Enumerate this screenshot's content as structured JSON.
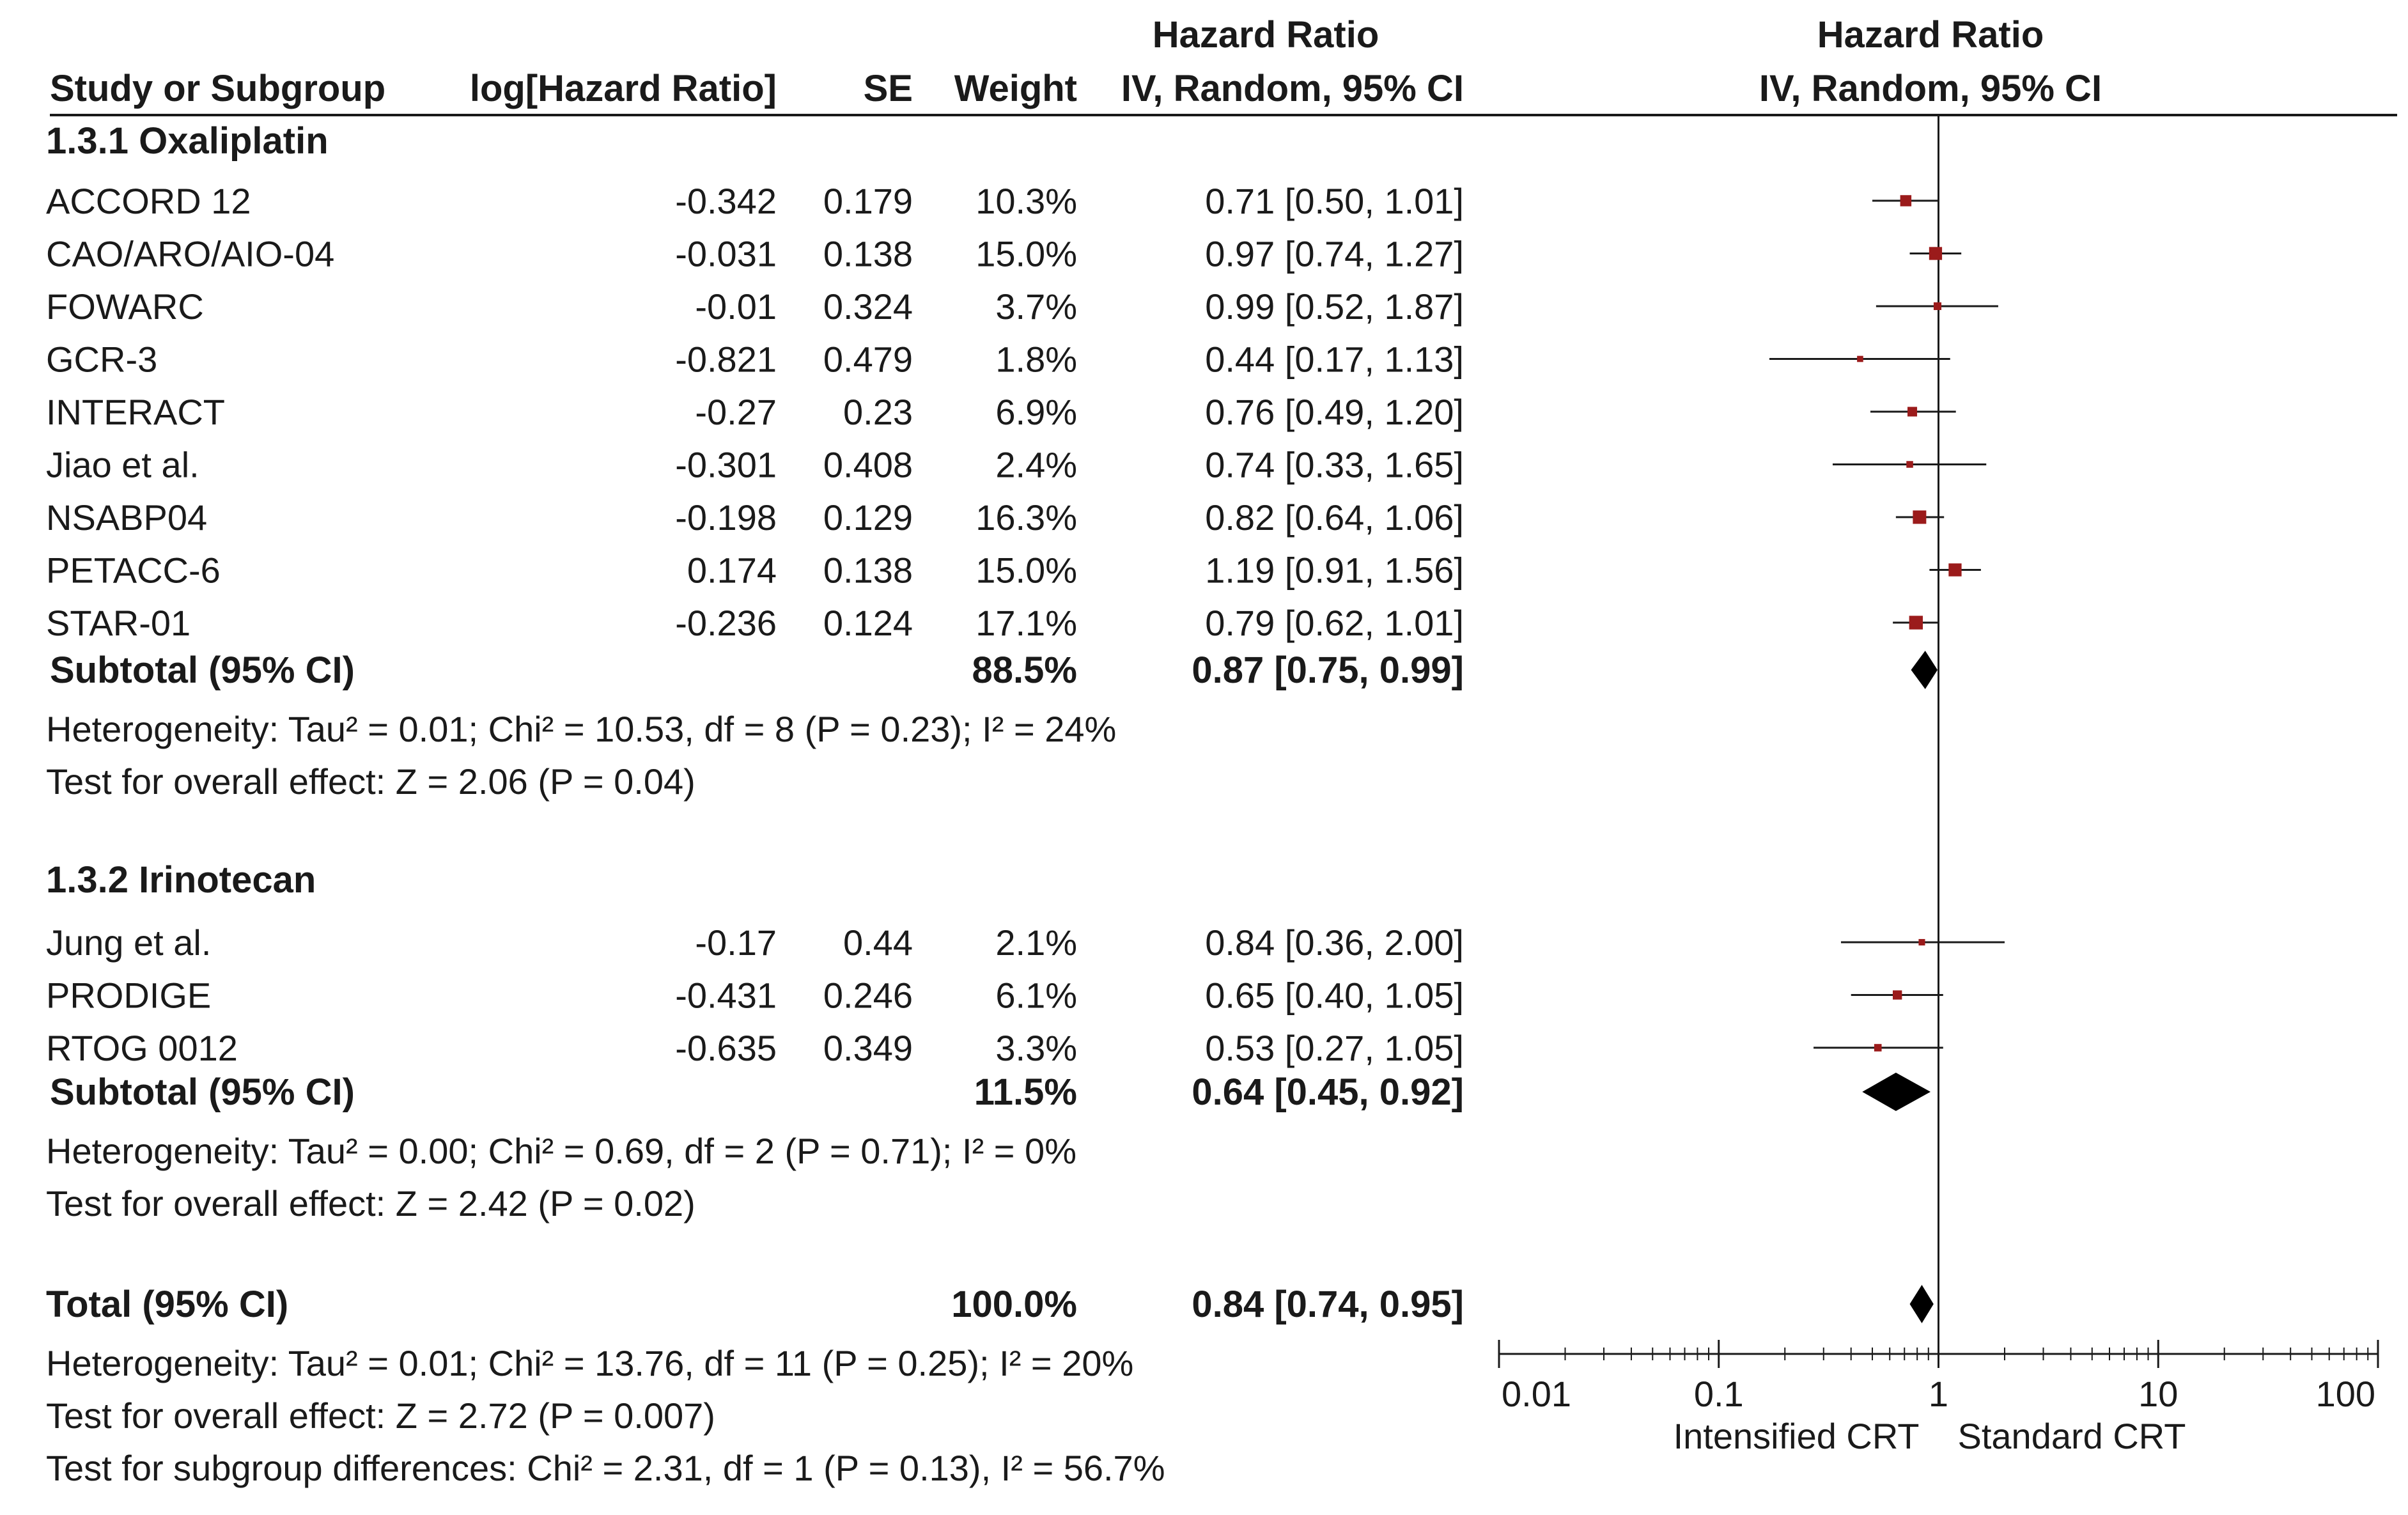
{
  "chart_data": {
    "type": "forest",
    "header": {
      "col_study": "Study or Subgroup",
      "col_loghr": "log[Hazard Ratio]",
      "col_se": "SE",
      "col_weight": "Weight",
      "col_hr_title": "Hazard Ratio",
      "col_hr_method": "IV, Random, 95% CI",
      "plot_title": "Hazard Ratio",
      "plot_method": "IV, Random, 95% CI"
    },
    "subgroups": [
      {
        "title": "1.3.1 Oxaliplatin",
        "studies": [
          {
            "name": "ACCORD 12",
            "loghr": "-0.342",
            "se": "0.179",
            "weight": "10.3%",
            "ci_text": "0.71 [0.50, 1.01]",
            "hr": 0.71,
            "lo": 0.5,
            "hi": 1.01,
            "w": 10.3
          },
          {
            "name": "CAO/ARO/AIO-04",
            "loghr": "-0.031",
            "se": "0.138",
            "weight": "15.0%",
            "ci_text": "0.97 [0.74, 1.27]",
            "hr": 0.97,
            "lo": 0.74,
            "hi": 1.27,
            "w": 15.0
          },
          {
            "name": "FOWARC",
            "loghr": "-0.01",
            "se": "0.324",
            "weight": "3.7%",
            "ci_text": "0.99 [0.52, 1.87]",
            "hr": 0.99,
            "lo": 0.52,
            "hi": 1.87,
            "w": 3.7
          },
          {
            "name": "GCR-3",
            "loghr": "-0.821",
            "se": "0.479",
            "weight": "1.8%",
            "ci_text": "0.44 [0.17, 1.13]",
            "hr": 0.44,
            "lo": 0.17,
            "hi": 1.13,
            "w": 1.8
          },
          {
            "name": "INTERACT",
            "loghr": "-0.27",
            "se": "0.23",
            "weight": "6.9%",
            "ci_text": "0.76 [0.49, 1.20]",
            "hr": 0.76,
            "lo": 0.49,
            "hi": 1.2,
            "w": 6.9
          },
          {
            "name": "Jiao et al.",
            "loghr": "-0.301",
            "se": "0.408",
            "weight": "2.4%",
            "ci_text": "0.74 [0.33, 1.65]",
            "hr": 0.74,
            "lo": 0.33,
            "hi": 1.65,
            "w": 2.4
          },
          {
            "name": "NSABP04",
            "loghr": "-0.198",
            "se": "0.129",
            "weight": "16.3%",
            "ci_text": "0.82 [0.64, 1.06]",
            "hr": 0.82,
            "lo": 0.64,
            "hi": 1.06,
            "w": 16.3
          },
          {
            "name": "PETACC-6",
            "loghr": "0.174",
            "se": "0.138",
            "weight": "15.0%",
            "ci_text": "1.19 [0.91, 1.56]",
            "hr": 1.19,
            "lo": 0.91,
            "hi": 1.56,
            "w": 15.0
          },
          {
            "name": "STAR-01",
            "loghr": "-0.236",
            "se": "0.124",
            "weight": "17.1%",
            "ci_text": "0.79 [0.62, 1.01]",
            "hr": 0.79,
            "lo": 0.62,
            "hi": 1.01,
            "w": 17.1
          }
        ],
        "subtotal": {
          "label": "Subtotal (95% CI)",
          "weight": "88.5%",
          "ci_text": "0.87 [0.75, 0.99]",
          "hr": 0.87,
          "lo": 0.75,
          "hi": 0.99
        },
        "heterogeneity": "Heterogeneity: Tau² = 0.01; Chi² = 10.53, df = 8 (P = 0.23); I² = 24%",
        "overall": "Test for overall effect: Z = 2.06 (P = 0.04)"
      },
      {
        "title": "1.3.2 Irinotecan",
        "studies": [
          {
            "name": "Jung et al.",
            "loghr": "-0.17",
            "se": "0.44",
            "weight": "2.1%",
            "ci_text": "0.84 [0.36, 2.00]",
            "hr": 0.84,
            "lo": 0.36,
            "hi": 2.0,
            "w": 2.1
          },
          {
            "name": "PRODIGE",
            "loghr": "-0.431",
            "se": "0.246",
            "weight": "6.1%",
            "ci_text": "0.65 [0.40, 1.05]",
            "hr": 0.65,
            "lo": 0.4,
            "hi": 1.05,
            "w": 6.1
          },
          {
            "name": "RTOG 0012",
            "loghr": "-0.635",
            "se": "0.349",
            "weight": "3.3%",
            "ci_text": "0.53 [0.27, 1.05]",
            "hr": 0.53,
            "lo": 0.27,
            "hi": 1.05,
            "w": 3.3
          }
        ],
        "subtotal": {
          "label": "Subtotal (95% CI)",
          "weight": "11.5%",
          "ci_text": "0.64 [0.45, 0.92]",
          "hr": 0.64,
          "lo": 0.45,
          "hi": 0.92
        },
        "heterogeneity": "Heterogeneity: Tau² = 0.00; Chi² = 0.69, df = 2 (P = 0.71); I² = 0%",
        "overall": "Test for overall effect: Z = 2.42 (P = 0.02)"
      }
    ],
    "total": {
      "label": "Total (95% CI)",
      "weight": "100.0%",
      "ci_text": "0.84 [0.74, 0.95]",
      "hr": 0.84,
      "lo": 0.74,
      "hi": 0.95,
      "heterogeneity": "Heterogeneity: Tau² = 0.01; Chi² = 13.76, df = 11 (P = 0.25); I² = 20%",
      "overall": "Test for overall effect: Z = 2.72 (P = 0.007)",
      "subgroup_diff": "Test for subgroup differences: Chi² = 2.31, df = 1 (P = 0.13), I² = 56.7%"
    },
    "axis": {
      "scale": "log",
      "range": [
        0.01,
        100
      ],
      "ticks": [
        0.01,
        0.1,
        1,
        10,
        100
      ],
      "tick_labels": [
        "0.01",
        "0.1",
        "1",
        "10",
        "100"
      ],
      "favours_left": "Intensified CRT",
      "favours_right": "Standard CRT"
    },
    "colors": {
      "marker": "#9b1b1b",
      "diamond": "#000000",
      "line": "#1a1a1a"
    }
  }
}
